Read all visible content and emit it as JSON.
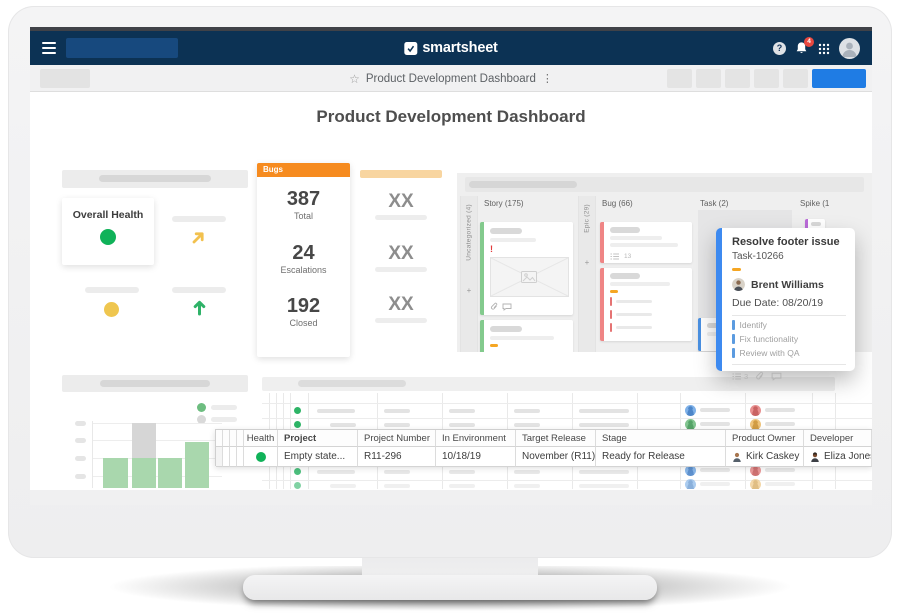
{
  "navbar": {
    "logo_text": "smartsheet",
    "help_label": "?",
    "notification_count": "4"
  },
  "toolbar": {
    "star_icon": "☆",
    "dashboard_title": "Product Development Dashboard",
    "more_icon": "⋮"
  },
  "page": {
    "heading": "Product Development Dashboard"
  },
  "health_widget": {
    "title": "Overall Health",
    "status_color": "#10b259"
  },
  "bugs_widget": {
    "header": "Bugs",
    "metrics": [
      {
        "value": "387",
        "label": "Total"
      },
      {
        "value": "24",
        "label": "Escalations"
      },
      {
        "value": "192",
        "label": "Closed"
      }
    ]
  },
  "metric_placeholders": [
    "XX",
    "XX",
    "XX"
  ],
  "kanban": {
    "columns": {
      "uncategorized": "Uncategorized (4)",
      "story": "Story (175)",
      "epic": "Epic (29)",
      "bug": "Bug (66)",
      "task": "Task (2)",
      "spike": "Spike (1"
    },
    "story_card_alert": "!",
    "bug_card_checklist_count": "13",
    "add_icon": "+"
  },
  "task_popup": {
    "title": "Resolve footer issue",
    "task_id": "Task-10266",
    "assignee": "Brent Williams",
    "due_date": "Due Date: 08/20/19",
    "checklist": [
      "Identify",
      "Fix functionality",
      "Review with QA"
    ],
    "checklist_count": "3"
  },
  "mini_chart": {
    "type": "bar",
    "bars": [
      {
        "segments": [
          {
            "color": "green",
            "height": 30
          }
        ]
      },
      {
        "segments": [
          {
            "color": "gray",
            "height": 35
          },
          {
            "color": "green",
            "height": 30
          }
        ]
      },
      {
        "segments": [
          {
            "color": "green",
            "height": 30
          }
        ]
      },
      {
        "segments": [
          {
            "color": "green",
            "height": 46
          }
        ]
      }
    ]
  },
  "project_table": {
    "headers": [
      "Health",
      "Project",
      "Project Number",
      "In Environment",
      "Target Release",
      "Stage",
      "Product Owner",
      "Developer"
    ],
    "row": {
      "project": "Empty state...",
      "project_number": "R11-296",
      "in_environment": "10/18/19",
      "target_release": "November (R11)",
      "stage": "Ready for Release",
      "product_owner": "Kirk Caskey",
      "developer": "Eliza Jones",
      "health_color": "#10b259"
    }
  },
  "colors": {
    "navy": "#0c3254",
    "accent_blue": "#1f7ce4",
    "popup_blue": "#3d8af0",
    "orange": "#f68b1f",
    "light_orange": "#f8d5a0",
    "green": "#10b259",
    "bar_green": "#a9d7ad",
    "yellow": "#efc64f",
    "red": "#e8483f"
  }
}
